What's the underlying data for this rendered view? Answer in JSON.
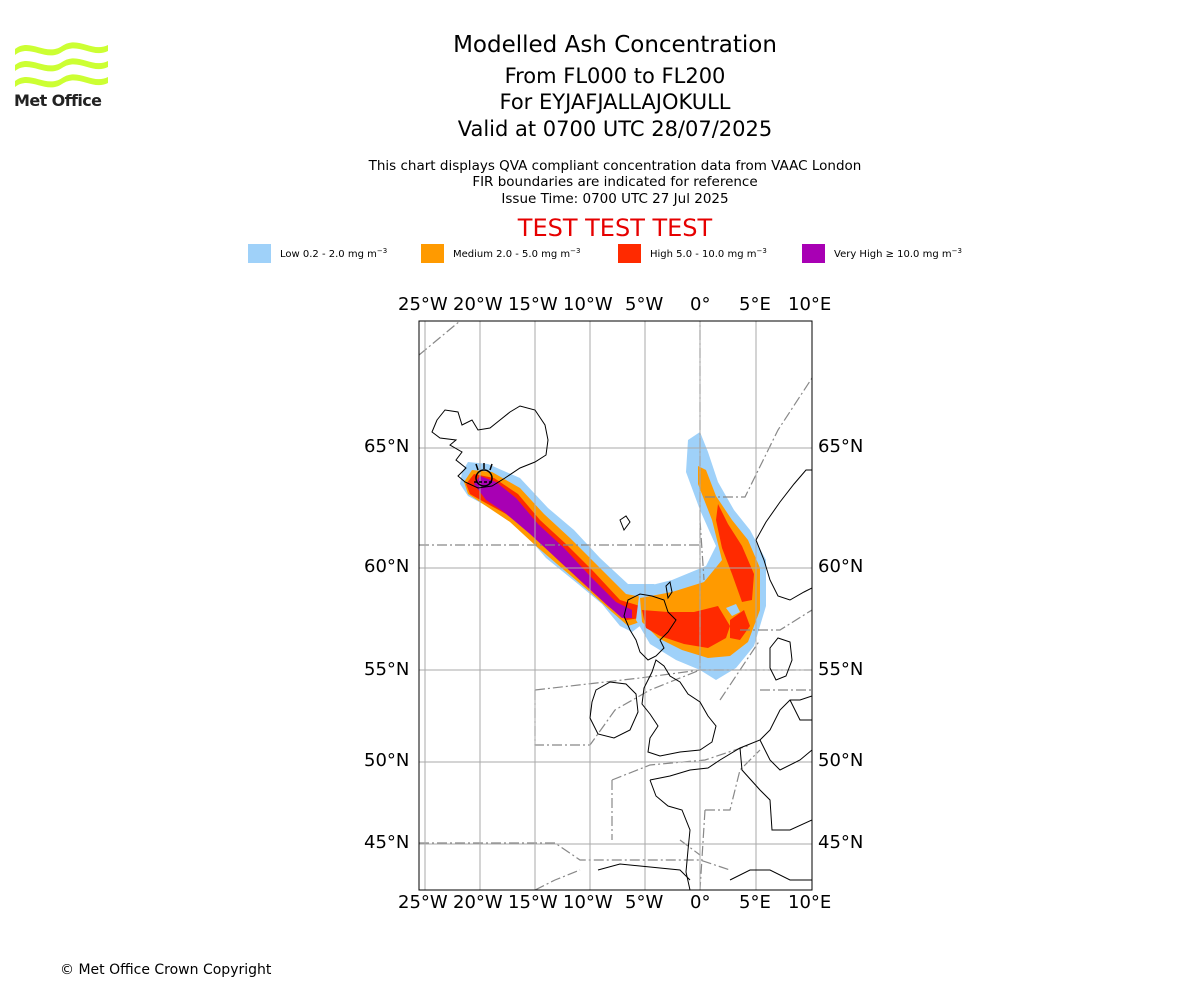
{
  "logo": {
    "text": "Met Office",
    "icon": "met-office-wave-logo-icon",
    "color": "#ccff33"
  },
  "header": {
    "title": "Modelled Ash Concentration",
    "levels": "From FL000 to FL200",
    "volcano": "For EYJAFJALLAJOKULL",
    "valid": "Valid at 0700 UTC 28/07/2025",
    "note1": "This chart displays QVA compliant concentration data from VAAC London",
    "note2": "FIR boundaries are indicated for reference",
    "issue": "Issue Time: 0700 UTC 27 Jul 2025",
    "test_banner": "TEST TEST TEST"
  },
  "legend": [
    {
      "label_prefix": "Low 0.2 - 2.0 mg m",
      "exp": "−3",
      "color": "#9fd1f9"
    },
    {
      "label_prefix": "Medium 2.0 - 5.0 mg m",
      "exp": "−3",
      "color": "#ff9a00"
    },
    {
      "label_prefix": "High 5.0 - 10.0 mg m",
      "exp": "−3",
      "color": "#ff2a00"
    },
    {
      "label_prefix": "Very High  ≥  10.0 mg m",
      "exp": "−3",
      "color": "#a800b4"
    }
  ],
  "map": {
    "lon_ticks": [
      "25°W",
      "20°W",
      "15°W",
      "10°W",
      "5°W",
      "0°",
      "5°E",
      "10°E"
    ],
    "lat_ticks": [
      "65°N",
      "60°N",
      "55°N",
      "50°N",
      "45°N"
    ]
  },
  "footer": {
    "copyright": "© Met Office Crown Copyright"
  }
}
